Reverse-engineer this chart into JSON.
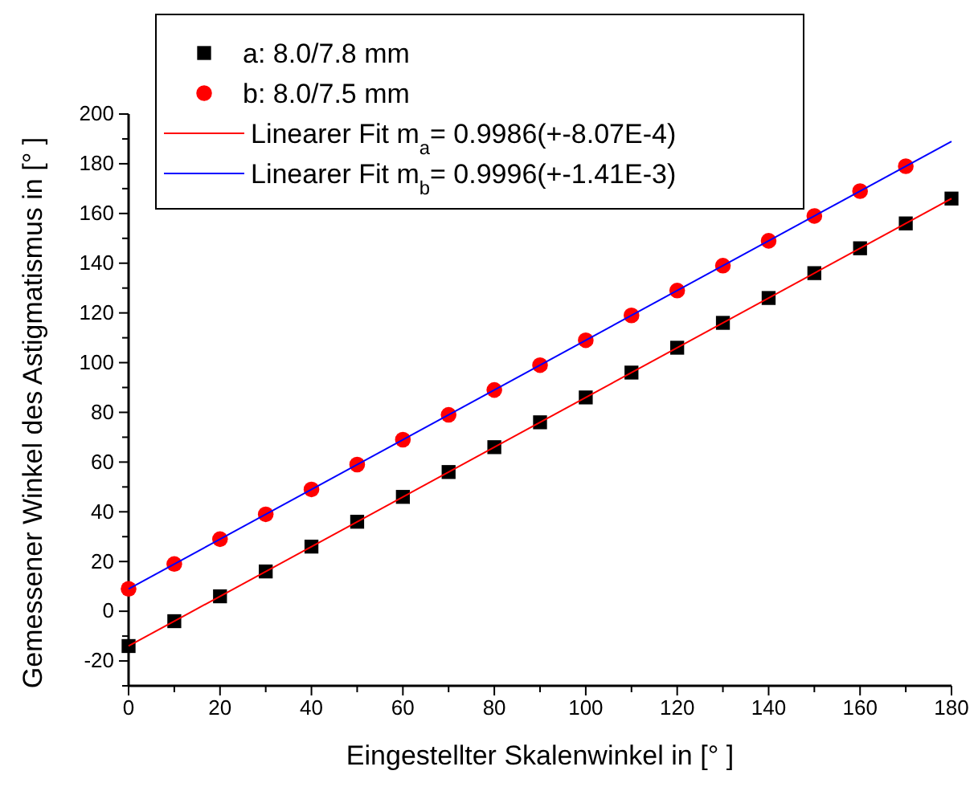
{
  "chart_data": {
    "type": "scatter",
    "xlabel": "Eingestellter Skalenwinkel in [° ]",
    "ylabel": "Gemessener Winkel des Astigmatismus in [° ]",
    "xlim": [
      0,
      180
    ],
    "xticks": [
      0,
      {
        "value": 10,
        "label": null
      },
      20,
      {
        "value": 30,
        "label": null
      },
      40,
      {
        "value": 50,
        "label": null
      },
      60,
      {
        "value": 70,
        "label": null
      },
      80,
      {
        "value": 90,
        "label": null
      },
      100,
      {
        "value": 110,
        "label": null
      },
      120,
      {
        "value": 130,
        "label": null
      },
      140,
      {
        "value": 150,
        "label": null
      },
      160,
      {
        "value": 170,
        "label": null
      },
      180
    ],
    "ylim": [
      -30,
      200
    ],
    "yticks": [
      {
        "value": -30,
        "label": null
      },
      -20,
      {
        "value": -10,
        "label": null
      },
      0,
      {
        "value": 10,
        "label": null
      },
      20,
      {
        "value": 30,
        "label": null
      },
      40,
      {
        "value": 50,
        "label": null
      },
      60,
      {
        "value": 70,
        "label": null
      },
      80,
      {
        "value": 90,
        "label": null
      },
      100,
      {
        "value": 110,
        "label": null
      },
      120,
      {
        "value": 130,
        "label": null
      },
      140,
      {
        "value": 150,
        "label": null
      },
      160,
      {
        "value": 170,
        "label": null
      },
      180,
      {
        "value": 190,
        "label": null
      },
      200
    ],
    "grid": false,
    "legend": "top left",
    "series": [
      {
        "name": "a: 8.0/7.8 mm",
        "marker": "square",
        "color": "#000000",
        "x": [
          0,
          10,
          20,
          30,
          40,
          50,
          60,
          70,
          80,
          90,
          100,
          110,
          120,
          130,
          140,
          150,
          160,
          170,
          180
        ],
        "values": [
          -14,
          -4,
          6,
          16,
          26,
          36,
          46,
          56,
          66,
          76,
          86,
          96,
          106,
          116,
          126,
          136,
          146,
          156,
          166
        ]
      },
      {
        "name": "b: 8.0/7.5 mm",
        "marker": "circle",
        "color": "#ff0000",
        "x": [
          0,
          10,
          20,
          30,
          40,
          50,
          60,
          70,
          80,
          90,
          100,
          110,
          120,
          130,
          140,
          150,
          160,
          170
        ],
        "values": [
          9,
          19,
          29,
          39,
          49,
          59,
          69,
          79,
          89,
          99,
          109,
          119,
          129,
          139,
          149,
          159,
          169,
          179
        ]
      },
      {
        "name": "Linearer Fit m$_{a}$= 0.9986(+-8.07E-4)",
        "type": "line",
        "marker": "none",
        "color": "#ff0000",
        "x": [
          0,
          180
        ],
        "values": [
          -14,
          166
        ]
      },
      {
        "name": "Linearer Fit m$_{b}$= 0.9996(+-1.41E-3)",
        "type": "line",
        "marker": "none",
        "color": "#0000ff",
        "x": [
          0,
          180
        ],
        "values": [
          9,
          189
        ]
      }
    ]
  }
}
